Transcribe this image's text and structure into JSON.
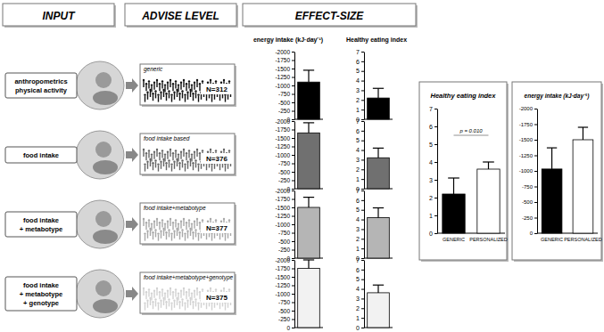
{
  "headers": [
    "INPUT",
    "ADVISE LEVEL",
    "EFFECT-SIZE"
  ],
  "columns": [
    "energy intake (kJ·day⁻¹)",
    "Healthy eating index"
  ],
  "rows": [
    {
      "input": [
        "anthropometrics",
        "physical activity"
      ],
      "advise": "generic",
      "n": "N=312"
    },
    {
      "input": [
        "food intake"
      ],
      "advise": "food intake based",
      "n": "N=376"
    },
    {
      "input": [
        "food intake",
        "+ metabotype"
      ],
      "advise": "food intake+metabotype",
      "n": "N=377"
    },
    {
      "input": [
        "food intake",
        "+ metabotype",
        "+ genotype"
      ],
      "advise": "food intake+metabotype+genotype",
      "n": "N=375"
    }
  ],
  "chart_data": [
    {
      "type": "bar",
      "categories": [
        null
      ],
      "values": [
        -1100
      ],
      "errors": [
        350
      ],
      "color": "#000000",
      "ylim": [
        0,
        -2000
      ],
      "yticks": [
        -2000,
        -1750,
        -1500,
        -1250,
        -1000,
        -750,
        -500,
        -250,
        0
      ],
      "tick_labels": "y"
    },
    {
      "type": "bar",
      "categories": [
        null
      ],
      "values": [
        2.2
      ],
      "errors": [
        1.0
      ],
      "color": "#000000",
      "ylim": [
        0,
        7
      ],
      "yticks": [
        0,
        1,
        2,
        3,
        4,
        5,
        6,
        7
      ],
      "tick_labels": "y"
    },
    {
      "type": "bar",
      "categories": [
        null
      ],
      "values": [
        -1650
      ],
      "errors": [
        300
      ],
      "color": "#707070",
      "ylim": [
        0,
        -2000
      ],
      "yticks": [
        -2000,
        -1750,
        -1500,
        -1250,
        -1000,
        -750,
        -500,
        -250,
        0
      ],
      "tick_labels": "y"
    },
    {
      "type": "bar",
      "categories": [
        null
      ],
      "values": [
        3.2
      ],
      "errors": [
        1.0
      ],
      "color": "#707070",
      "ylim": [
        0,
        7
      ],
      "yticks": [
        0,
        1,
        2,
        3,
        4,
        5,
        6,
        7
      ],
      "tick_labels": "y"
    },
    {
      "type": "bar",
      "categories": [
        null
      ],
      "values": [
        -1500
      ],
      "errors": [
        300
      ],
      "color": "#b5b5b5",
      "ylim": [
        0,
        -2000
      ],
      "yticks": [
        -2000,
        -1750,
        -1500,
        -1250,
        -1000,
        -750,
        -500,
        -250,
        0
      ],
      "tick_labels": "y"
    },
    {
      "type": "bar",
      "categories": [
        null
      ],
      "values": [
        4.2
      ],
      "errors": [
        1.0
      ],
      "color": "#b5b5b5",
      "ylim": [
        0,
        7
      ],
      "yticks": [
        0,
        1,
        2,
        3,
        4,
        5,
        6,
        7
      ],
      "tick_labels": "y"
    },
    {
      "type": "bar",
      "categories": [
        null
      ],
      "values": [
        -1750
      ],
      "errors": [
        250
      ],
      "color": "#f2f2f2",
      "ylim": [
        0,
        -2000
      ],
      "yticks": [
        -2000,
        -1750,
        -1500,
        -1250,
        -1000,
        -750,
        -500,
        -250,
        0
      ],
      "tick_labels": "y"
    },
    {
      "type": "bar",
      "categories": [
        null
      ],
      "values": [
        3.6
      ],
      "errors": [
        0.8
      ],
      "color": "#f2f2f2",
      "ylim": [
        0,
        7
      ],
      "yticks": [
        0,
        1,
        2,
        3,
        4,
        5,
        6,
        7
      ],
      "tick_labels": "y"
    },
    {
      "type": "bar",
      "title": "Healthy eating index",
      "categories": [
        "GENERIC",
        "PERSONALIZED"
      ],
      "values": [
        2.2,
        3.6
      ],
      "errors": [
        0.9,
        0.4
      ],
      "colors": [
        "#000000",
        "#ffffff"
      ],
      "ylim": [
        0,
        7
      ],
      "yticks": [
        0,
        1,
        2,
        3,
        4,
        5,
        6,
        7
      ],
      "annotation": "p = 0.010",
      "tick_labels": true
    },
    {
      "type": "bar",
      "title": "energy intake (kJ·day⁻¹)",
      "categories": [
        "GENERIC",
        "PERSONALIZED"
      ],
      "values": [
        -1030,
        -1500
      ],
      "errors": [
        340,
        200
      ],
      "colors": [
        "#000000",
        "#ffffff"
      ],
      "ylim": [
        0,
        -2000
      ],
      "yticks": [
        -2000,
        -1750,
        -1500,
        -1250,
        -1000,
        -750,
        -500,
        -250,
        0
      ],
      "tick_labels": true
    }
  ]
}
